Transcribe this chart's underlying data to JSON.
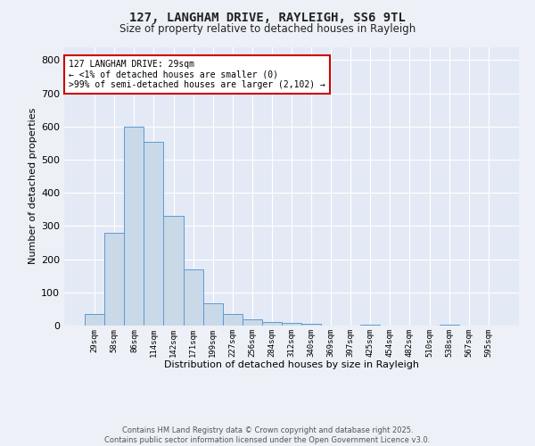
{
  "title_line1": "127, LANGHAM DRIVE, RAYLEIGH, SS6 9TL",
  "title_line2": "Size of property relative to detached houses in Rayleigh",
  "xlabel": "Distribution of detached houses by size in Rayleigh",
  "ylabel": "Number of detached properties",
  "bar_labels": [
    "29sqm",
    "58sqm",
    "86sqm",
    "114sqm",
    "142sqm",
    "171sqm",
    "199sqm",
    "227sqm",
    "256sqm",
    "284sqm",
    "312sqm",
    "340sqm",
    "369sqm",
    "397sqm",
    "425sqm",
    "454sqm",
    "482sqm",
    "510sqm",
    "538sqm",
    "567sqm",
    "595sqm"
  ],
  "bar_values": [
    35,
    280,
    600,
    555,
    330,
    170,
    68,
    36,
    20,
    10,
    7,
    5,
    0,
    0,
    3,
    0,
    0,
    0,
    3,
    0,
    0
  ],
  "bar_color": "#c9d9e8",
  "bar_edge_color": "#5b9bd5",
  "annotation_line1": "127 LANGHAM DRIVE: 29sqm",
  "annotation_line2": "← <1% of detached houses are smaller (0)",
  "annotation_line3": ">99% of semi-detached houses are larger (2,102) →",
  "annotation_box_color": "#ffffff",
  "annotation_box_edge_color": "#cc0000",
  "ylim": [
    0,
    840
  ],
  "yticks": [
    0,
    100,
    200,
    300,
    400,
    500,
    600,
    700,
    800
  ],
  "background_color": "#edf1f7",
  "plot_bg_color": "#e4eaf5",
  "grid_color": "#ffffff",
  "footer_line1": "Contains HM Land Registry data © Crown copyright and database right 2025.",
  "footer_line2": "Contains public sector information licensed under the Open Government Licence v3.0."
}
